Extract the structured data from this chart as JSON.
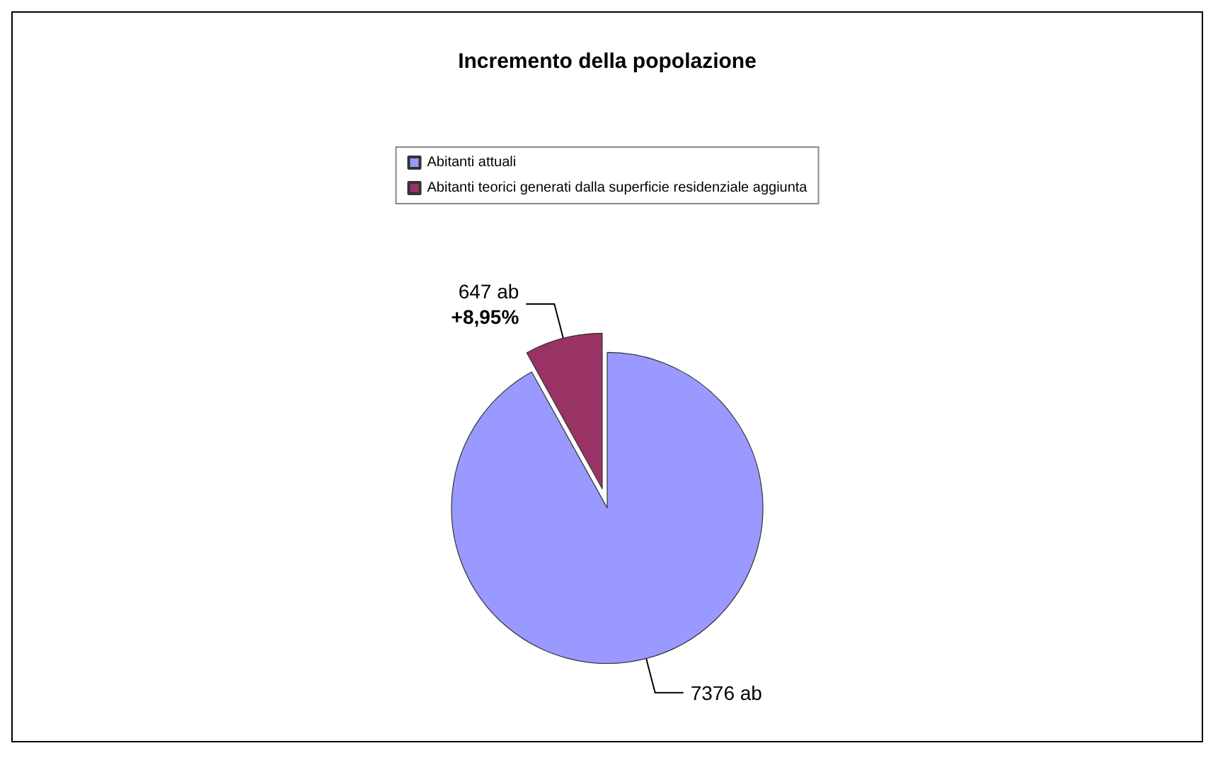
{
  "chart_data": {
    "type": "pie",
    "title": "Incremento della popolazione",
    "categories": [
      "Abitanti attuali",
      "Abitanti teorici generati dalla superficie residenziale aggiunta"
    ],
    "values": [
      7376,
      647
    ],
    "colors": [
      "#9999ff",
      "#993366"
    ],
    "value_labels": [
      "7376 ab",
      "647 ab\n+8,95%"
    ],
    "legend": "top"
  }
}
